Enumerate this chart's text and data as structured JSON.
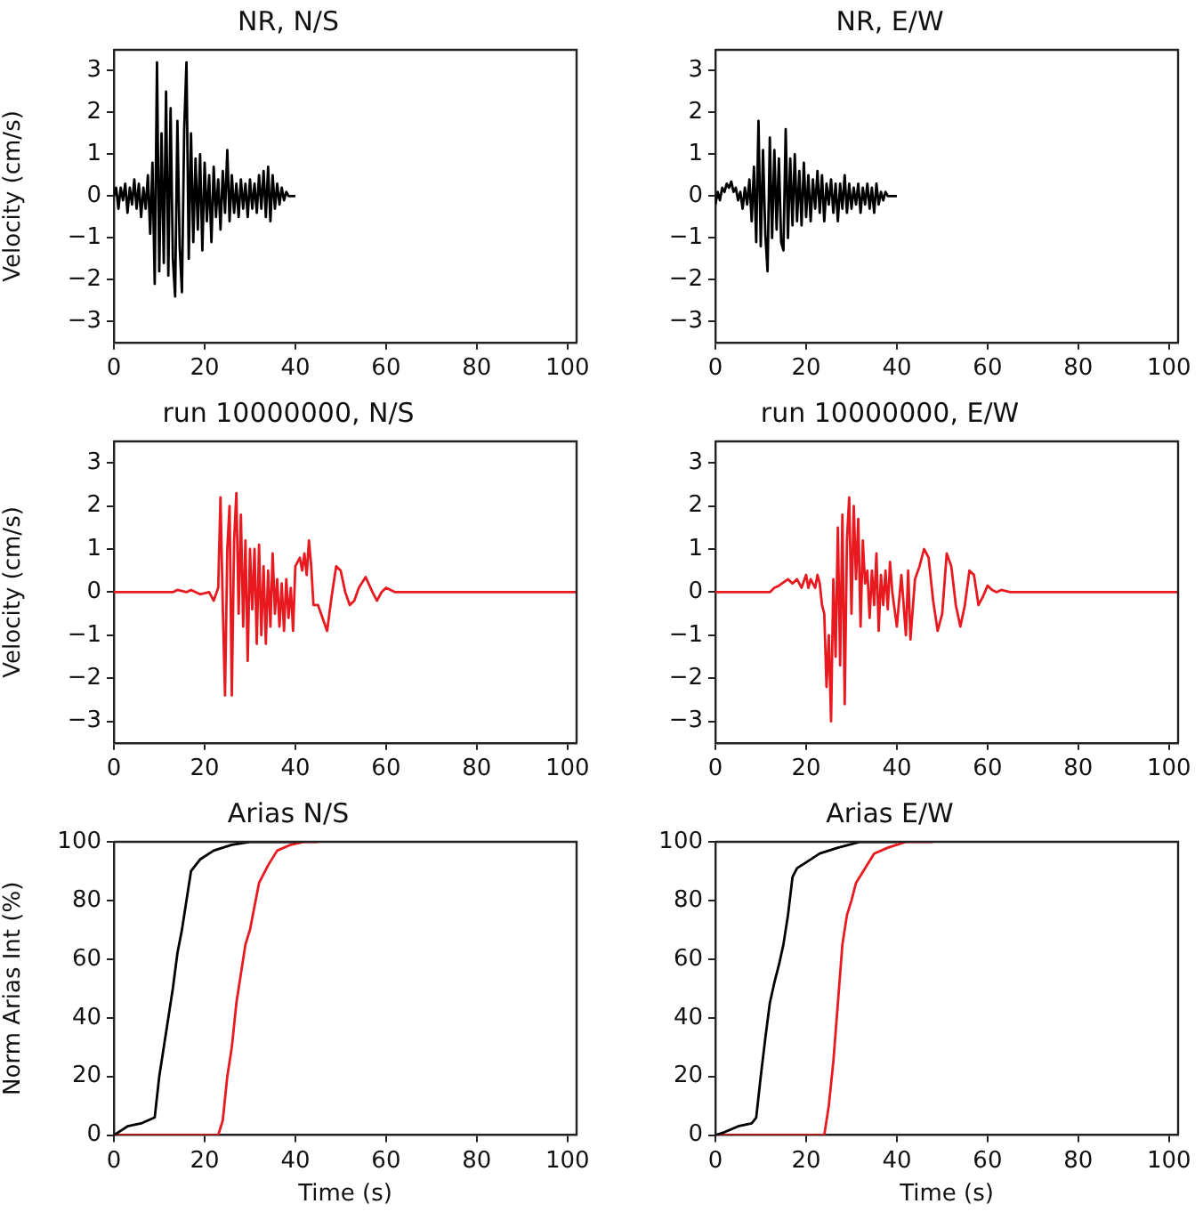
{
  "chart_data": [
    {
      "type": "line",
      "title": "NR, N/S",
      "ylabel": "Velocity (cm/s)",
      "xlim": [
        0,
        102
      ],
      "xticks": [
        0,
        20,
        40,
        60,
        80,
        100
      ],
      "ylim": [
        -3.5,
        3.5
      ],
      "yticks": [
        -3,
        -2,
        -1,
        0,
        1,
        2,
        3
      ],
      "series": [
        {
          "color": "#000000",
          "x": [
            0,
            0.5,
            1,
            1.5,
            2,
            2.5,
            3,
            3.5,
            4,
            4.5,
            5,
            5.5,
            6,
            6.5,
            7,
            7.5,
            8,
            8.5,
            9,
            9.5,
            10,
            10.5,
            11,
            11.5,
            12,
            12.5,
            13,
            13.5,
            14,
            14.5,
            15,
            15.5,
            16,
            16.5,
            17,
            17.5,
            18,
            18.5,
            19,
            19.5,
            20,
            20.5,
            21,
            21.5,
            22,
            22.5,
            23,
            23.5,
            24,
            24.5,
            25,
            25.5,
            26,
            26.5,
            27,
            27.5,
            28,
            28.5,
            29,
            29.5,
            30,
            30.5,
            31,
            31.5,
            32,
            32.5,
            33,
            33.5,
            34,
            34.5,
            35,
            35.5,
            36,
            36.5,
            37,
            37.5,
            38,
            38.5,
            39,
            39.5,
            40
          ],
          "values": [
            0,
            0.2,
            -0.3,
            0.2,
            -0.1,
            0.3,
            -0.4,
            0.2,
            -0.2,
            0.4,
            -0.3,
            0.3,
            -0.5,
            0.2,
            -0.3,
            0.5,
            -0.9,
            0.8,
            -2.1,
            3.2,
            -1.8,
            1.5,
            -1.6,
            2.5,
            -1.9,
            2.1,
            -1.5,
            -2.4,
            1.8,
            -1.2,
            -2.3,
            1.6,
            3.2,
            -1.5,
            1.5,
            -1.1,
            0.9,
            -0.8,
            1.0,
            -1.3,
            0.8,
            -0.6,
            0.5,
            -1.1,
            0.7,
            -0.5,
            0.4,
            -0.8,
            0.6,
            -0.4,
            1.1,
            -0.6,
            0.5,
            -0.4,
            0.3,
            -0.5,
            0.4,
            -0.3,
            0.3,
            -0.5,
            0.4,
            -0.3,
            0.3,
            -0.4,
            0.5,
            -0.3,
            0.6,
            -0.5,
            0.7,
            -0.6,
            0.5,
            -0.3,
            0.3,
            -0.2,
            0.2,
            -0.1,
            0.1,
            0,
            0,
            0,
            0
          ]
        }
      ]
    },
    {
      "type": "line",
      "title": "NR, E/W",
      "xlim": [
        0,
        102
      ],
      "xticks": [
        0,
        20,
        40,
        60,
        80,
        100
      ],
      "ylim": [
        -3.5,
        3.5
      ],
      "yticks": [
        -3,
        -2,
        -1,
        0,
        1,
        2,
        3
      ],
      "series": [
        {
          "color": "#000000",
          "x": [
            0,
            0.5,
            1,
            1.5,
            2,
            2.5,
            3,
            3.5,
            4,
            4.5,
            5,
            5.5,
            6,
            6.5,
            7,
            7.5,
            8,
            8.5,
            9,
            9.5,
            10,
            10.5,
            11,
            11.5,
            12,
            12.5,
            13,
            13.5,
            14,
            14.5,
            15,
            15.5,
            16,
            16.5,
            17,
            17.5,
            18,
            18.5,
            19,
            19.5,
            20,
            20.5,
            21,
            21.5,
            22,
            22.5,
            23,
            23.5,
            24,
            24.5,
            25,
            25.5,
            26,
            26.5,
            27,
            27.5,
            28,
            28.5,
            29,
            29.5,
            30,
            30.5,
            31,
            31.5,
            32,
            32.5,
            33,
            33.5,
            34,
            34.5,
            35,
            35.5,
            36,
            36.5,
            37,
            37.5,
            38,
            38.5,
            39,
            39.5,
            40
          ],
          "values": [
            -0.2,
            0.1,
            -0.1,
            0.2,
            0.1,
            0.3,
            0.2,
            0.35,
            0.1,
            0.2,
            -0.1,
            0.1,
            -0.3,
            0.2,
            -0.2,
            0.4,
            -0.6,
            0.7,
            -1.1,
            1.8,
            -1.2,
            1.1,
            -0.9,
            -1.8,
            1.4,
            -1.0,
            1.1,
            -0.8,
            0.9,
            -1.1,
            -1.3,
            1.6,
            -1.0,
            0.9,
            -0.7,
            1.0,
            -0.6,
            0.6,
            -0.7,
            0.8,
            -0.5,
            0.5,
            -0.6,
            0.4,
            -0.3,
            0.6,
            -0.4,
            0.5,
            -0.6,
            0.3,
            -0.2,
            0.4,
            -0.4,
            0.3,
            -0.6,
            0.3,
            -0.3,
            0.5,
            -0.4,
            0.3,
            -0.3,
            0.2,
            -0.2,
            0.3,
            -0.4,
            0.2,
            -0.2,
            0.3,
            -0.3,
            0.2,
            -0.4,
            0.3,
            -0.2,
            0.1,
            -0.1,
            0.1,
            0,
            0,
            0,
            0,
            0
          ]
        }
      ]
    },
    {
      "type": "line",
      "title": "run 10000000, N/S",
      "ylabel": "Velocity (cm/s)",
      "xlim": [
        0,
        102
      ],
      "xticks": [
        0,
        20,
        40,
        60,
        80,
        100
      ],
      "ylim": [
        -3.5,
        3.5
      ],
      "yticks": [
        -3,
        -2,
        -1,
        0,
        1,
        2,
        3
      ],
      "series": [
        {
          "color": "#e8191f",
          "x": [
            0,
            13,
            14,
            16,
            17,
            19,
            21,
            22,
            23,
            23.5,
            24,
            24.5,
            25,
            25.5,
            26,
            26.5,
            27,
            27.5,
            28,
            28.5,
            29,
            29.5,
            30,
            30.5,
            31,
            31.5,
            32,
            32.5,
            33,
            33.5,
            34,
            34.5,
            35,
            35.5,
            36,
            36.5,
            37,
            37.5,
            38,
            38.5,
            39,
            39.5,
            40,
            41,
            41.5,
            42,
            42.5,
            43,
            43.5,
            44,
            45,
            46,
            47,
            48,
            49,
            50,
            51,
            52,
            53,
            54,
            55.5,
            57,
            58,
            59,
            60,
            61,
            62,
            102
          ],
          "values": [
            0,
            0,
            0.05,
            0,
            0.05,
            -0.05,
            0,
            -0.2,
            0.1,
            2.2,
            -0.3,
            -2.4,
            1.0,
            2.0,
            -2.4,
            1.2,
            2.3,
            -0.5,
            1.8,
            -0.8,
            1.2,
            -1.6,
            1.0,
            -0.4,
            1.0,
            -1.2,
            1.1,
            -1.0,
            0.6,
            -1.2,
            0.5,
            -0.8,
            0.9,
            -0.5,
            0.3,
            -0.8,
            0.2,
            -0.9,
            0.3,
            -0.6,
            0.1,
            -0.9,
            0.6,
            0.8,
            0.5,
            0.9,
            0.4,
            1.2,
            0.6,
            -0.3,
            -0.3,
            -0.6,
            -0.9,
            -0.1,
            0.6,
            0.5,
            0,
            -0.3,
            -0.2,
            0.1,
            0.35,
            0,
            -0.2,
            0,
            0.1,
            0.05,
            0,
            0
          ]
        }
      ]
    },
    {
      "type": "line",
      "title": "run 10000000, E/W",
      "xlim": [
        0,
        102
      ],
      "xticks": [
        0,
        20,
        40,
        60,
        80,
        100
      ],
      "ylim": [
        -3.5,
        3.5
      ],
      "yticks": [
        -3,
        -2,
        -1,
        0,
        1,
        2,
        3
      ],
      "series": [
        {
          "color": "#e8191f",
          "x": [
            0,
            12,
            13,
            14,
            16,
            17,
            18,
            19,
            20,
            20.5,
            21,
            22,
            22.5,
            23,
            23.5,
            24,
            24.5,
            25,
            25.5,
            26,
            26.5,
            27,
            27.5,
            28,
            28.5,
            29,
            29.5,
            30,
            30.5,
            31,
            31.5,
            32,
            32.5,
            33,
            33.5,
            34,
            34.5,
            35,
            35.5,
            36,
            36.5,
            37,
            37.5,
            38,
            38.5,
            39,
            40,
            41,
            42,
            42.5,
            43,
            44,
            45,
            46,
            47,
            48,
            49,
            50,
            51,
            52,
            53,
            54,
            55,
            56,
            57,
            58,
            59,
            60,
            61,
            62,
            63,
            65,
            102
          ],
          "values": [
            0,
            0,
            0.1,
            0.15,
            0.3,
            0.2,
            0.3,
            0.1,
            0.4,
            0.1,
            0.3,
            0.1,
            0.4,
            0.2,
            -0.3,
            -0.5,
            -2.2,
            -1.0,
            -3.0,
            0.3,
            -1.5,
            1.5,
            -1.7,
            1.8,
            -2.6,
            1.2,
            2.2,
            -0.5,
            2.0,
            0.3,
            1.7,
            -0.8,
            1.2,
            0.2,
            0.5,
            -0.6,
            0.5,
            -0.3,
            0.9,
            -0.9,
            0.4,
            -0.3,
            0.5,
            -0.4,
            0.7,
            0,
            -0.8,
            0.4,
            -1.0,
            0.5,
            -1.1,
            0.3,
            0.6,
            1.0,
            0.8,
            -0.2,
            -0.9,
            -0.5,
            0.9,
            0.6,
            -0.3,
            -0.8,
            -0.3,
            0.5,
            0.4,
            -0.3,
            -0.1,
            0.15,
            0.05,
            0,
            0.05,
            0,
            0
          ]
        }
      ]
    },
    {
      "type": "line",
      "title": "Arias N/S",
      "xlabel": "Time (s)",
      "ylabel": "Norm Arias Int (%)",
      "xlim": [
        0,
        102
      ],
      "xticks": [
        0,
        20,
        40,
        60,
        80,
        100
      ],
      "ylim": [
        0,
        100
      ],
      "yticks": [
        0,
        20,
        40,
        60,
        80,
        100
      ],
      "series": [
        {
          "color": "#000000",
          "x": [
            0,
            1,
            3,
            6,
            9,
            10,
            11,
            12,
            13,
            14,
            15,
            16,
            17,
            19,
            22,
            26,
            30,
            40
          ],
          "values": [
            0,
            1,
            3,
            4,
            6,
            20,
            30,
            40,
            50,
            62,
            70,
            80,
            90,
            94,
            97,
            99,
            100,
            100
          ]
        },
        {
          "color": "#e8191f",
          "x": [
            0,
            23,
            24,
            25,
            26,
            27,
            28,
            29,
            30,
            31,
            32,
            34,
            36,
            39,
            42,
            45
          ],
          "values": [
            0,
            0,
            5,
            20,
            30,
            45,
            55,
            65,
            70,
            78,
            86,
            92,
            97,
            99,
            100,
            100
          ]
        }
      ]
    },
    {
      "type": "line",
      "title": "Arias E/W",
      "xlabel": "Time (s)",
      "xlim": [
        0,
        102
      ],
      "xticks": [
        0,
        20,
        40,
        60,
        80,
        100
      ],
      "ylim": [
        0,
        100
      ],
      "yticks": [
        0,
        20,
        40,
        60,
        80,
        100
      ],
      "series": [
        {
          "color": "#000000",
          "x": [
            0,
            2,
            5,
            8,
            9,
            10,
            11,
            12,
            13,
            14,
            15,
            16,
            17,
            18,
            20,
            23,
            27,
            32,
            40
          ],
          "values": [
            0,
            1,
            3,
            4,
            6,
            20,
            33,
            45,
            52,
            58,
            65,
            75,
            88,
            91,
            93,
            96,
            98,
            100,
            100
          ]
        },
        {
          "color": "#e8191f",
          "x": [
            0,
            24,
            25,
            26,
            27,
            28,
            29,
            30,
            31,
            33,
            35,
            38,
            42,
            48
          ],
          "values": [
            0,
            0,
            10,
            25,
            45,
            65,
            75,
            80,
            86,
            91,
            96,
            98,
            100,
            100
          ]
        }
      ]
    }
  ]
}
